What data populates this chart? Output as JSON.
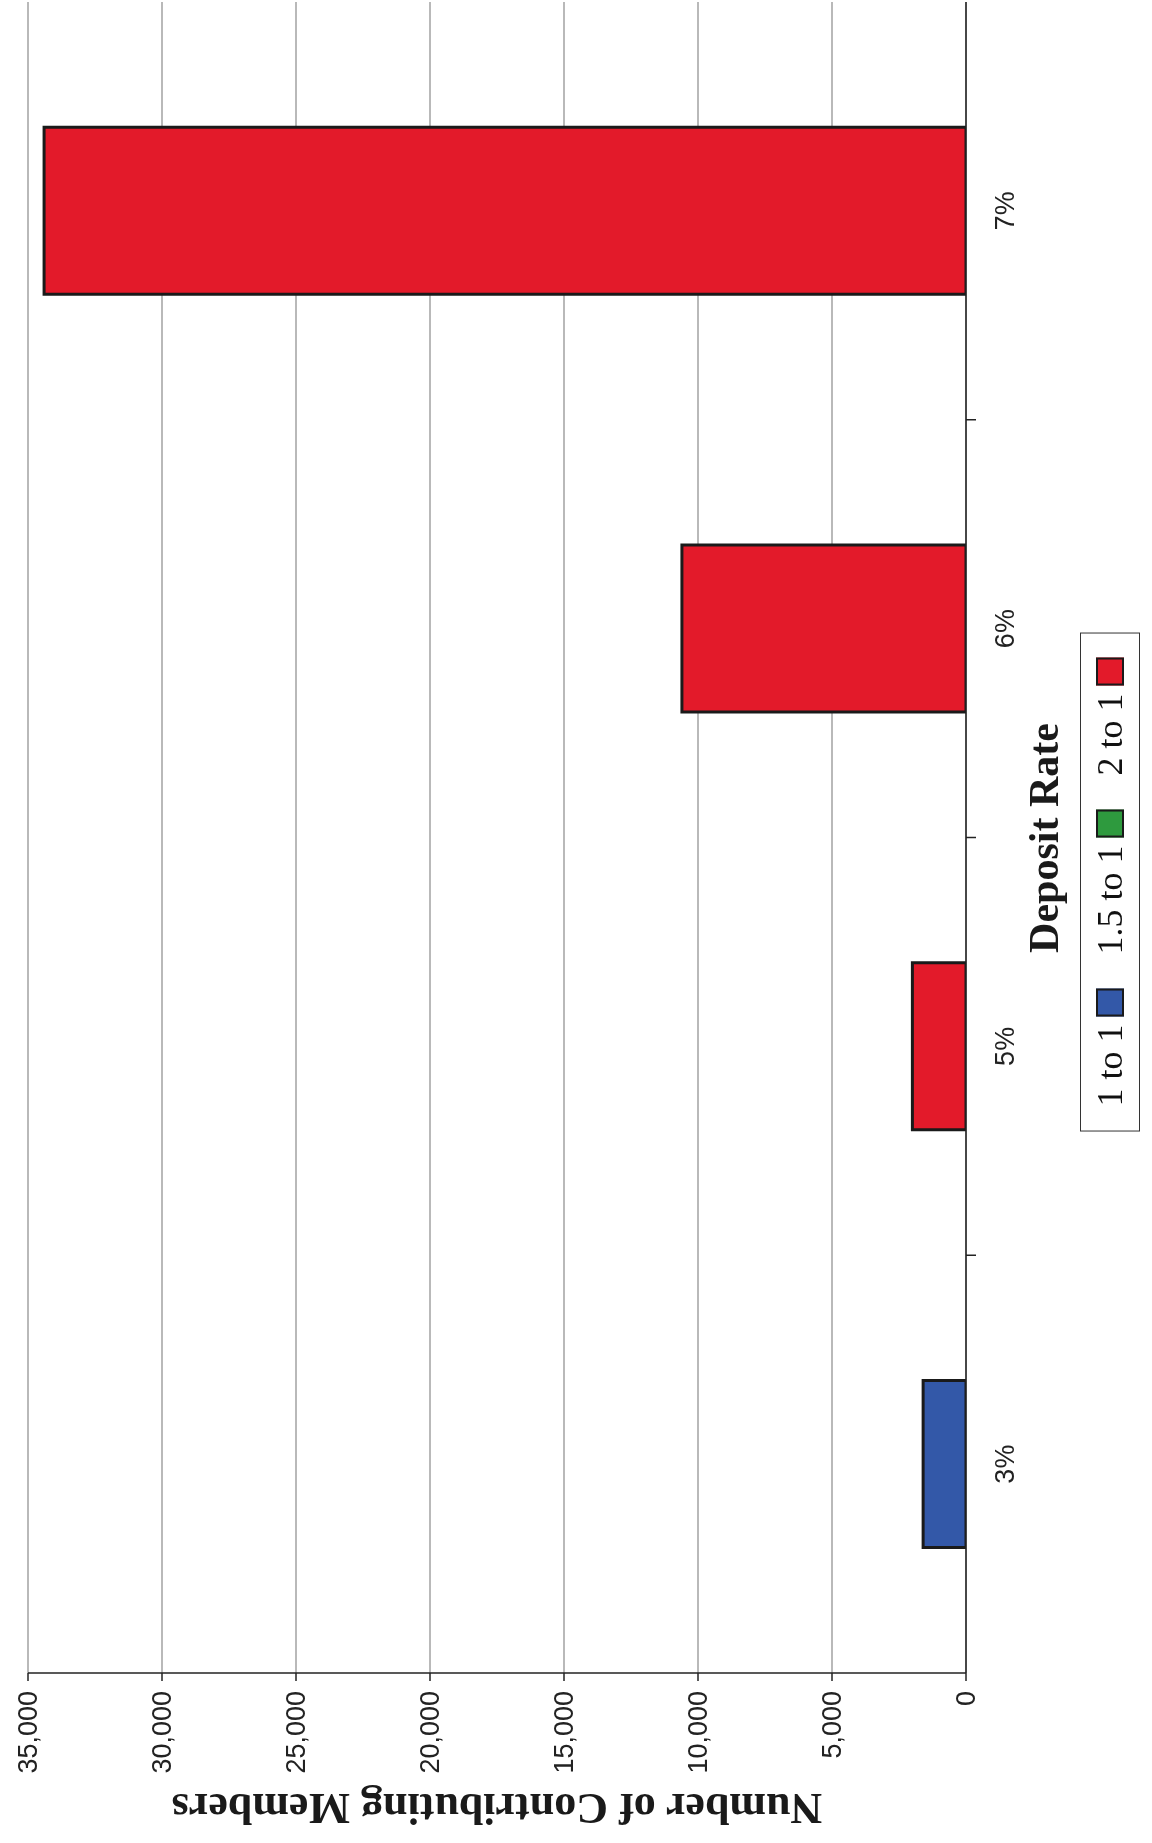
{
  "chart_data": {
    "type": "bar",
    "orientation": "horizontal",
    "stacked": true,
    "categories": [
      "7%",
      "6%",
      "5%",
      "3%"
    ],
    "series": [
      {
        "name": "1 to 1",
        "color": "#3358a8",
        "values": [
          null,
          null,
          null,
          1600
        ]
      },
      {
        "name": "1.5 to 1",
        "color": "#2e9a3e",
        "values": [
          null,
          null,
          null,
          null
        ]
      },
      {
        "name": "2 to 1",
        "color": "#e31a2a",
        "values": [
          34400,
          10600,
          2000,
          null
        ]
      }
    ],
    "xlabel": "Number of Contributing Members",
    "ylabel": "Deposit Rate",
    "xlim": [
      35000,
      0
    ],
    "xticks": [
      {
        "value": 35000,
        "label": "35,000"
      },
      {
        "value": 30000,
        "label": "30,000"
      },
      {
        "value": 25000,
        "label": "25,000"
      },
      {
        "value": 20000,
        "label": "20,000"
      },
      {
        "value": 15000,
        "label": "15,000"
      },
      {
        "value": 10000,
        "label": "10,000"
      },
      {
        "value": 5000,
        "label": "5,000"
      },
      0
    ],
    "grid": "x",
    "legend": "right"
  }
}
